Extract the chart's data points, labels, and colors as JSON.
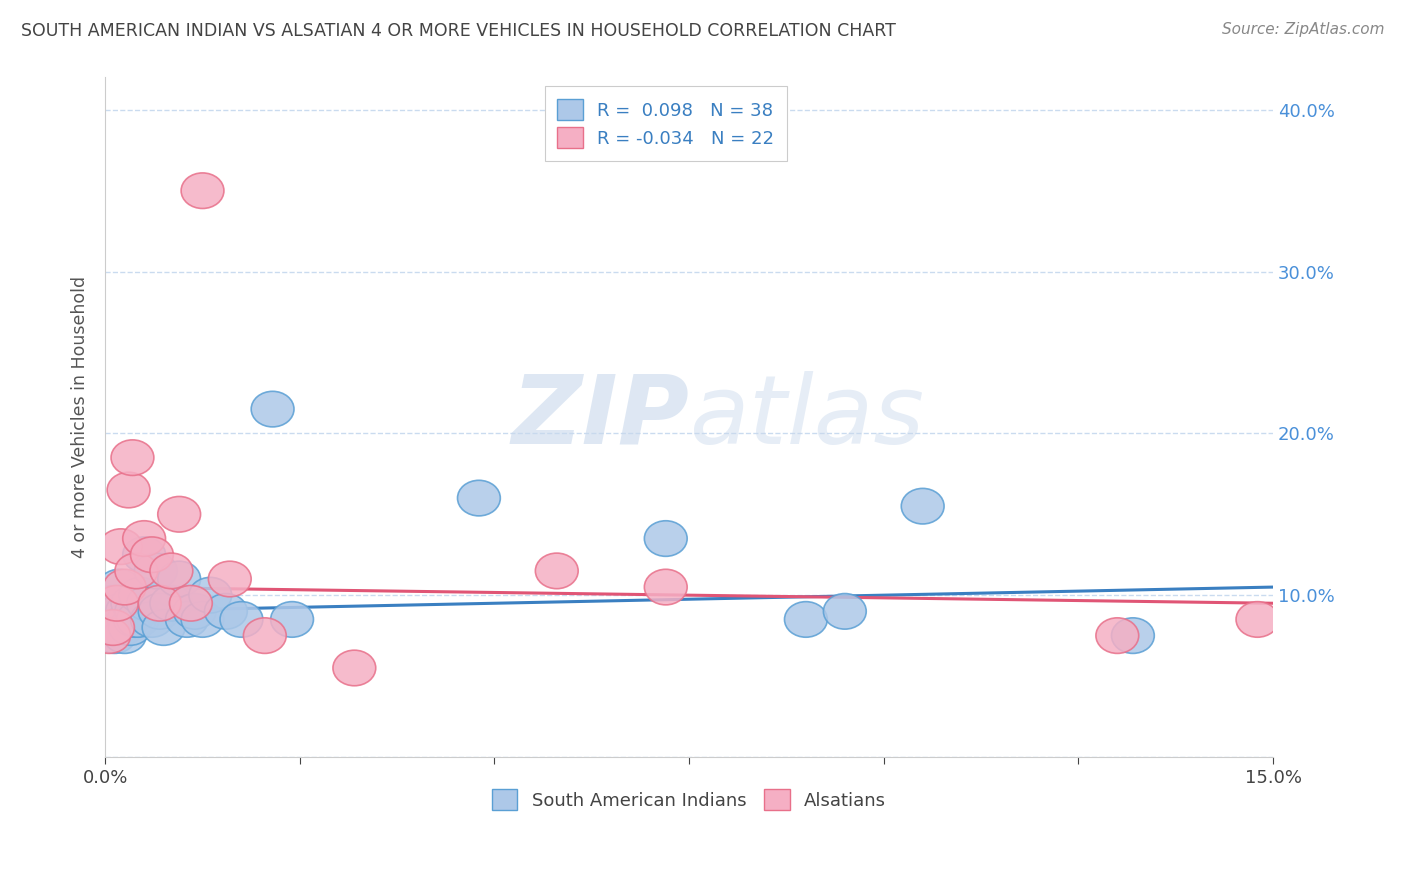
{
  "title": "SOUTH AMERICAN INDIAN VS ALSATIAN 4 OR MORE VEHICLES IN HOUSEHOLD CORRELATION CHART",
  "source": "Source: ZipAtlas.com",
  "ylabel": "4 or more Vehicles in Household",
  "xlim": [
    0.0,
    15.0
  ],
  "ylim": [
    0.0,
    42.0
  ],
  "legend_r1": "R =  0.098   N = 38",
  "legend_r2": "R = -0.034   N = 22",
  "blue_color": "#adc8e8",
  "pink_color": "#f5afc4",
  "blue_edge_color": "#5a9fd4",
  "pink_edge_color": "#e8708a",
  "blue_line_color": "#3a7fc1",
  "pink_line_color": "#e05575",
  "watermark_zip": "ZIP",
  "watermark_atlas": "atlas",
  "blue_x": [
    0.05,
    0.1,
    0.12,
    0.15,
    0.18,
    0.2,
    0.22,
    0.25,
    0.28,
    0.3,
    0.32,
    0.35,
    0.38,
    0.4,
    0.42,
    0.45,
    0.5,
    0.55,
    0.6,
    0.65,
    0.7,
    0.75,
    0.85,
    0.95,
    1.05,
    1.15,
    1.25,
    1.35,
    1.55,
    1.75,
    2.15,
    2.4,
    4.8,
    7.2,
    9.0,
    9.5,
    10.5,
    13.2
  ],
  "blue_y": [
    8.5,
    9.5,
    7.5,
    8.0,
    10.5,
    9.0,
    8.0,
    7.5,
    9.0,
    8.5,
    8.0,
    9.5,
    8.5,
    9.0,
    8.5,
    10.0,
    12.5,
    9.5,
    8.5,
    11.5,
    9.0,
    8.0,
    9.5,
    11.0,
    8.5,
    9.0,
    8.5,
    10.0,
    9.0,
    8.5,
    21.5,
    8.5,
    16.0,
    13.5,
    8.5,
    9.0,
    15.5,
    7.5
  ],
  "pink_x": [
    0.05,
    0.1,
    0.15,
    0.2,
    0.25,
    0.3,
    0.35,
    0.4,
    0.5,
    0.6,
    0.7,
    0.85,
    0.95,
    1.1,
    1.25,
    1.6,
    2.05,
    3.2,
    5.8,
    7.2,
    13.0,
    14.8
  ],
  "pink_y": [
    7.5,
    8.0,
    9.5,
    13.0,
    10.5,
    16.5,
    18.5,
    11.5,
    13.5,
    12.5,
    9.5,
    11.5,
    15.0,
    9.5,
    35.0,
    11.0,
    7.5,
    5.5,
    11.5,
    10.5,
    7.5,
    8.5
  ],
  "blue_line_start_y": 9.0,
  "blue_line_end_y": 10.5,
  "pink_line_start_y": 10.5,
  "pink_line_end_y": 9.5
}
